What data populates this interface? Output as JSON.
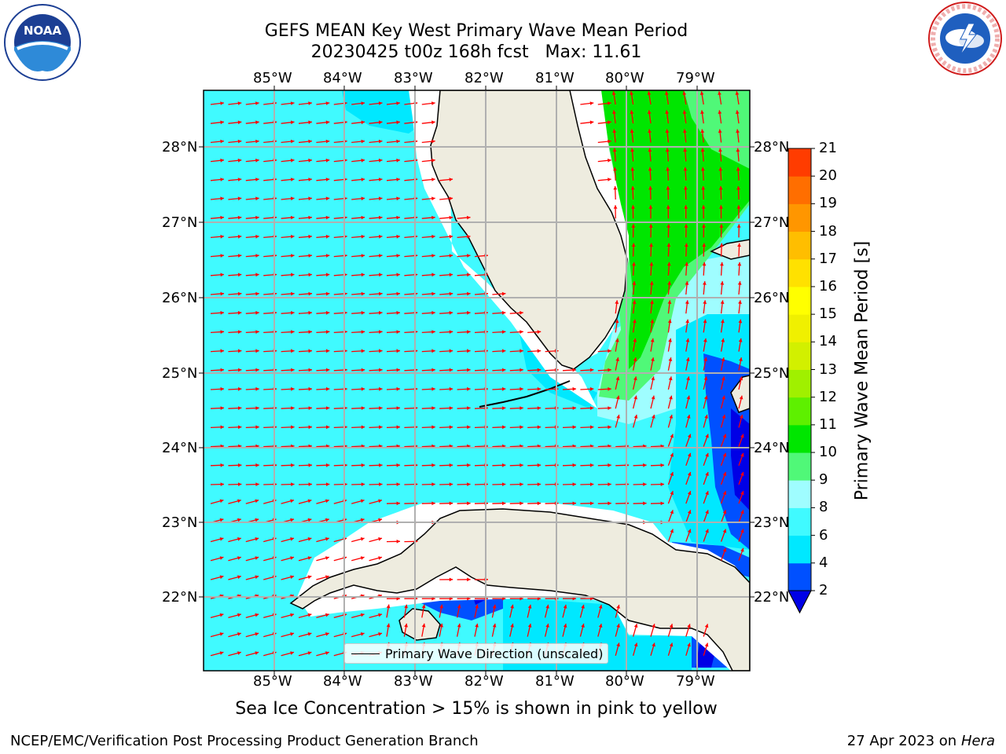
{
  "header": {
    "title_line1": "GEFS MEAN Key West Primary Wave Mean Period",
    "title_line2": "20230425 t00z 168h fcst   Max: 11.61"
  },
  "logos": {
    "left": "NOAA",
    "left_ring_text": "NATIONAL OCEANIC AND ATMOSPHERIC ADMINISTRATION · U.S. DEPARTMENT OF COMMERCE",
    "right_ring_text": "NATIONAL WEATHER SERVICE"
  },
  "map": {
    "lon_labels": [
      "85°W",
      "84°W",
      "83°W",
      "82°W",
      "81°W",
      "80°W",
      "79°W"
    ],
    "lat_labels": [
      "28°N",
      "27°N",
      "26°N",
      "25°N",
      "24°N",
      "23°N",
      "22°N"
    ],
    "legend_label": "Primary Wave Direction (unscaled)",
    "vector_color": "#ff0000",
    "land_color": "#eeecdf"
  },
  "colorbar": {
    "title": "Primary Wave Mean Period [s]",
    "ticks": [
      "2",
      "4",
      "6",
      "8",
      "9",
      "10",
      "11",
      "12",
      "13",
      "14",
      "15",
      "16",
      "17",
      "18",
      "19",
      "20",
      "21"
    ],
    "level_colors": [
      "#0050ff",
      "#00e8ff",
      "#40faff",
      "#9ffdff",
      "#50f878",
      "#00e600",
      "#5ef000",
      "#a0f000",
      "#d2f000",
      "#f0f000",
      "#ffff00",
      "#ffe100",
      "#ffbe00",
      "#ff9600",
      "#ff6e00",
      "#ff3c00"
    ],
    "under_color": "#0000e6"
  },
  "notes": {
    "sea_ice": "Sea Ice Concentration > 15% is shown in pink to yellow"
  },
  "footer": {
    "left": "NCEP/EMC/Verification Post Processing Product Generation Branch",
    "date_prefix": "27 Apr 2023 on ",
    "machine": "Hera"
  }
}
